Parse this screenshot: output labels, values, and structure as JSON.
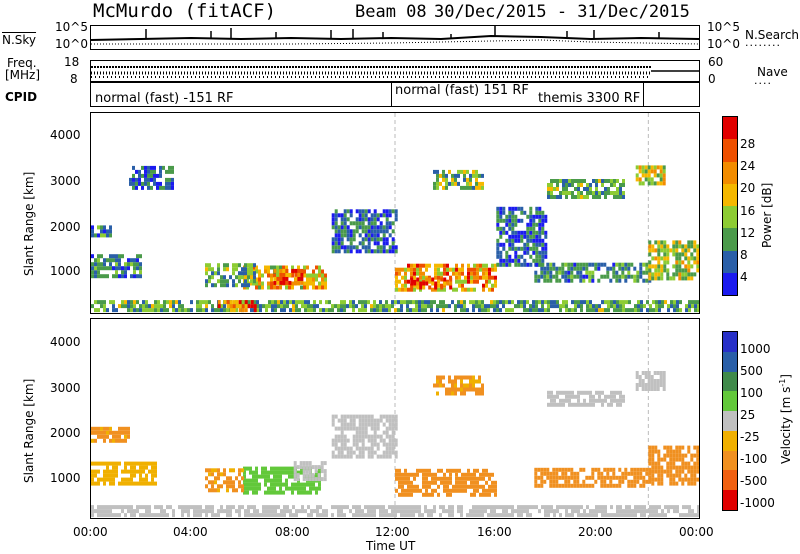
{
  "header": {
    "station": "McMurdo (fitACF)",
    "beam": "Beam 08",
    "date_range": "30/Dec/2015 - 31/Dec/2015"
  },
  "top_panels": {
    "nsky_label": "N.Sky",
    "nsearch_label": "N.Search",
    "freq_label_1": "Freq.",
    "freq_label_2": "[MHz]",
    "nave_label": "Nave",
    "cpid_label": "CPID",
    "nsky_ticks": [
      "10^5",
      "10^0"
    ],
    "freq_ticks": [
      "18",
      "8"
    ],
    "nave_ticks": [
      "60",
      "0"
    ],
    "cpid_segments": [
      {
        "label": "normal (fast) -151 RF",
        "start_h": 0,
        "end_h": 12
      },
      {
        "label": "normal (fast) 151 RF",
        "start_h": 12,
        "end_h": 22
      },
      {
        "label": "themis 3300 RF",
        "start_h": 12,
        "end_h": 22
      }
    ]
  },
  "power_colorbar": {
    "label": "Power [dB]",
    "ticks": [
      "28",
      "24",
      "20",
      "16",
      "12",
      "8",
      "4"
    ],
    "colors": [
      "#e10000",
      "#ee5000",
      "#f28c00",
      "#f5b800",
      "#8dcc33",
      "#4a9a4a",
      "#2a5fa8",
      "#1b1bef"
    ]
  },
  "velocity_colorbar": {
    "label": "Velocity [m s^-1]",
    "ticks": [
      "1000",
      "500",
      "100",
      "25",
      "-25",
      "-100",
      "-500",
      "-1000"
    ],
    "colors": [
      "#2830c8",
      "#2a5fa8",
      "#3f8a4a",
      "#62c83a",
      "#c0c0c0",
      "#f0b000",
      "#f09020",
      "#f06010",
      "#e00000"
    ]
  },
  "chart_data": [
    {
      "type": "heatmap",
      "title": "Power",
      "xlabel": "Time UT",
      "ylabel": "Slant Range [km]",
      "x_ticks": [
        "00:00",
        "04:00",
        "08:00",
        "12:00",
        "16:00",
        "20:00",
        "00:00"
      ],
      "xlim_hours": [
        0,
        24
      ],
      "y_ticks": [
        1000,
        2000,
        3000,
        4000
      ],
      "ylim_km": [
        180,
        4600
      ],
      "colorscale_db": [
        0,
        30
      ],
      "regions": [
        {
          "t0": 6.0,
          "t1": 9.2,
          "r0": 700,
          "r1": 1200,
          "value": 18
        },
        {
          "t0": 7.2,
          "t1": 8.3,
          "r0": 800,
          "r1": 1100,
          "value": 26
        },
        {
          "t0": 12.0,
          "t1": 16.0,
          "r0": 650,
          "r1": 1200,
          "value": 20
        },
        {
          "t0": 12.6,
          "t1": 14.2,
          "r0": 700,
          "r1": 950,
          "value": 26
        },
        {
          "t0": 4.5,
          "t1": 6.5,
          "r0": 750,
          "r1": 1200,
          "value": 10
        },
        {
          "t0": 0.0,
          "t1": 2.0,
          "r0": 950,
          "r1": 1400,
          "value": 8
        },
        {
          "t0": 0.0,
          "t1": 0.8,
          "r0": 1850,
          "r1": 2100,
          "value": 8
        },
        {
          "t0": 17.5,
          "t1": 22.0,
          "r0": 850,
          "r1": 1250,
          "value": 8
        },
        {
          "t0": 22.0,
          "t1": 24.0,
          "r0": 900,
          "r1": 1700,
          "value": 14
        },
        {
          "t0": 13.5,
          "t1": 15.5,
          "r0": 2900,
          "r1": 3300,
          "value": 12
        },
        {
          "t0": 18.0,
          "t1": 21.0,
          "r0": 2700,
          "r1": 3100,
          "value": 10
        },
        {
          "t0": 21.5,
          "t1": 22.6,
          "r0": 3000,
          "r1": 3400,
          "value": 14
        },
        {
          "t0": 1.5,
          "t1": 3.2,
          "r0": 2900,
          "r1": 3400,
          "value": 6
        },
        {
          "t0": 9.5,
          "t1": 12.0,
          "r0": 1500,
          "r1": 2400,
          "value": 6
        },
        {
          "t0": 16.0,
          "t1": 18.0,
          "r0": 1200,
          "r1": 2500,
          "value": 6
        },
        {
          "t0": 0.0,
          "t1": 24.0,
          "r0": 200,
          "r1": 420,
          "value": 10
        },
        {
          "t0": 5.0,
          "t1": 6.5,
          "r0": 200,
          "r1": 450,
          "value": 22
        }
      ]
    },
    {
      "type": "heatmap",
      "title": "Velocity",
      "xlabel": "Time UT",
      "ylabel": "Slant Range [km]",
      "x_ticks": [
        "00:00",
        "04:00",
        "08:00",
        "12:00",
        "16:00",
        "20:00",
        "00:00"
      ],
      "xlim_hours": [
        0,
        24
      ],
      "y_ticks": [
        1000,
        2000,
        3000,
        4000
      ],
      "ylim_km": [
        180,
        4600
      ],
      "colorscale_ms": [
        -1000,
        1000
      ],
      "regions": [
        {
          "t0": 6.0,
          "t1": 9.0,
          "r0": 700,
          "r1": 1300,
          "value": 60
        },
        {
          "t0": 8.0,
          "t1": 9.2,
          "r0": 1000,
          "r1": 1400,
          "value": 15
        },
        {
          "t0": 12.0,
          "t1": 16.0,
          "r0": 650,
          "r1": 1200,
          "value": -150
        },
        {
          "t0": 4.5,
          "t1": 6.0,
          "r0": 750,
          "r1": 1200,
          "value": -120
        },
        {
          "t0": 0.0,
          "t1": 1.5,
          "r0": 1850,
          "r1": 2150,
          "value": -130
        },
        {
          "t0": 0.0,
          "t1": 2.5,
          "r0": 900,
          "r1": 1400,
          "value": -60
        },
        {
          "t0": 17.5,
          "t1": 22.0,
          "r0": 850,
          "r1": 1250,
          "value": -200
        },
        {
          "t0": 22.0,
          "t1": 24.0,
          "r0": 900,
          "r1": 1700,
          "value": -250
        },
        {
          "t0": 13.5,
          "t1": 15.5,
          "r0": 2900,
          "r1": 3300,
          "value": -120
        },
        {
          "t0": 18.0,
          "t1": 21.0,
          "r0": 2650,
          "r1": 3000,
          "value": 10
        },
        {
          "t0": 21.5,
          "t1": 22.6,
          "r0": 3000,
          "r1": 3400,
          "value": 5
        },
        {
          "t0": 9.5,
          "t1": 12.0,
          "r0": 1500,
          "r1": 2400,
          "value": 10
        },
        {
          "t0": 0.0,
          "t1": 24.0,
          "r0": 200,
          "r1": 420,
          "value": 5
        }
      ]
    }
  ]
}
